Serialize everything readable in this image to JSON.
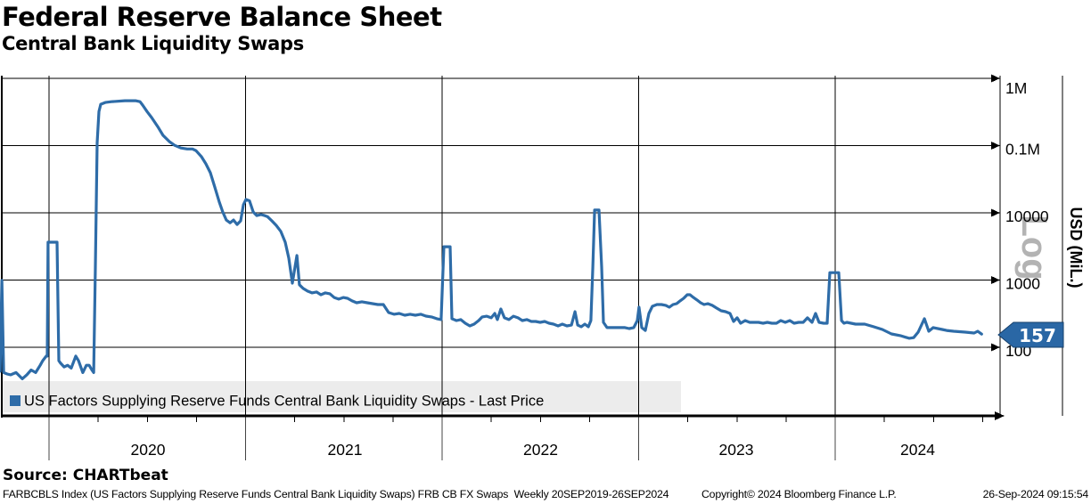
{
  "header": {
    "title": "Federal Reserve Balance Sheet",
    "subtitle": "Central Bank Liquidity Swaps"
  },
  "legend": {
    "label": "US Factors Supplying Reserve Funds Central Bank Liquidity Swaps - Last Price"
  },
  "badge": {
    "value": "157"
  },
  "footer": {
    "source": "Source: CHARTbeat",
    "description": "FARBCBLS Index (US Factors Supplying Reserve Funds Central Bank Liquidity Swaps) FRB CB FX Swaps  Weekly 20SEP2019-26SEP2024",
    "copyright": "Copyright© 2024 Bloomberg Finance L.P.",
    "timestamp": "26-Sep-2024 09:15:54"
  },
  "colors": {
    "line": "#2e6ca8",
    "badge_fill": "#2a67a5",
    "badge_border": "#17406b",
    "legend_bg": "#ececec",
    "log_label": "#b3b3b3",
    "grid": "#000000"
  },
  "chart_data": {
    "type": "line",
    "title": "Federal Reserve Balance Sheet",
    "subtitle": "Central Bank Liquidity Swaps",
    "ylabel": "USD (MiL.)",
    "scale_label": "Log",
    "y_scale": "log",
    "grid": true,
    "legend_position": "bottom-left",
    "ylim": [
      30,
      1200000
    ],
    "xlim": [
      2019.72,
      2024.78
    ],
    "y_ticks": [
      "1M",
      "0.1M",
      "10000",
      "1000",
      "100"
    ],
    "y_tick_values": [
      1000000,
      100000,
      10000,
      1000,
      100
    ],
    "x_ticks": [
      "2020",
      "2021",
      "2022",
      "2023",
      "2024"
    ],
    "x_range_label": "Weekly 20SEP2019-26SEP2024",
    "last_price": "157",
    "series": [
      {
        "name": "US Factors Supplying Reserve Funds Central Bank Liquidity Swaps - Last Price",
        "color": "#2e6ca8",
        "points": [
          [
            2019.751,
            44
          ],
          [
            2019.76,
            990
          ],
          [
            2019.769,
            42
          ],
          [
            2019.787,
            40
          ],
          [
            2019.805,
            39
          ],
          [
            2019.832,
            42
          ],
          [
            2019.864,
            34
          ],
          [
            2019.887,
            39
          ],
          [
            2019.909,
            46
          ],
          [
            2019.932,
            42
          ],
          [
            2019.955,
            54
          ],
          [
            2019.968,
            63
          ],
          [
            2019.986,
            74
          ],
          [
            2019.991,
            74
          ],
          [
            2019.995,
            3660
          ],
          [
            2020.041,
            3660
          ],
          [
            2020.05,
            63
          ],
          [
            2020.059,
            58
          ],
          [
            2020.077,
            51
          ],
          [
            2020.095,
            54
          ],
          [
            2020.113,
            49
          ],
          [
            2020.136,
            74
          ],
          [
            2020.15,
            63
          ],
          [
            2020.172,
            42
          ],
          [
            2020.19,
            54
          ],
          [
            2020.204,
            54
          ],
          [
            2020.218,
            46
          ],
          [
            2020.227,
            42
          ],
          [
            2020.236,
            1560
          ],
          [
            2020.245,
            110000
          ],
          [
            2020.254,
            321000
          ],
          [
            2020.263,
            412000
          ],
          [
            2020.286,
            437000
          ],
          [
            2020.317,
            450000
          ],
          [
            2020.386,
            465000
          ],
          [
            2020.44,
            465000
          ],
          [
            2020.463,
            450000
          ],
          [
            2020.476,
            400000
          ],
          [
            2020.499,
            321000
          ],
          [
            2020.522,
            261000
          ],
          [
            2020.553,
            192000
          ],
          [
            2020.58,
            142000
          ],
          [
            2020.612,
            115000
          ],
          [
            2020.639,
            101000
          ],
          [
            2020.671,
            92000
          ],
          [
            2020.703,
            89000
          ],
          [
            2020.73,
            89000
          ],
          [
            2020.748,
            84000
          ],
          [
            2020.776,
            68000
          ],
          [
            2020.798,
            53500
          ],
          [
            2020.821,
            39500
          ],
          [
            2020.843,
            24300
          ],
          [
            2020.866,
            14500
          ],
          [
            2020.884,
            10300
          ],
          [
            2020.902,
            7800
          ],
          [
            2020.921,
            7100
          ],
          [
            2020.939,
            7800
          ],
          [
            2020.957,
            6700
          ],
          [
            2020.975,
            7600
          ],
          [
            2020.989,
            13200
          ],
          [
            2021.002,
            15800
          ],
          [
            2021.02,
            15100
          ],
          [
            2021.039,
            10300
          ],
          [
            2021.057,
            9100
          ],
          [
            2021.079,
            9400
          ],
          [
            2021.097,
            9100
          ],
          [
            2021.111,
            8800
          ],
          [
            2021.134,
            7600
          ],
          [
            2021.156,
            6500
          ],
          [
            2021.179,
            5300
          ],
          [
            2021.202,
            3660
          ],
          [
            2021.22,
            2120
          ],
          [
            2021.238,
            900
          ],
          [
            2021.261,
            2320
          ],
          [
            2021.274,
            850
          ],
          [
            2021.293,
            750
          ],
          [
            2021.315,
            685
          ],
          [
            2021.338,
            645
          ],
          [
            2021.361,
            665
          ],
          [
            2021.383,
            605
          ],
          [
            2021.406,
            645
          ],
          [
            2021.429,
            625
          ],
          [
            2021.451,
            550
          ],
          [
            2021.474,
            520
          ],
          [
            2021.497,
            550
          ],
          [
            2021.519,
            535
          ],
          [
            2021.542,
            490
          ],
          [
            2021.565,
            460
          ],
          [
            2021.592,
            475
          ],
          [
            2021.619,
            460
          ],
          [
            2021.646,
            445
          ],
          [
            2021.673,
            432
          ],
          [
            2021.701,
            432
          ],
          [
            2021.728,
            329
          ],
          [
            2021.755,
            310
          ],
          [
            2021.782,
            319
          ],
          [
            2021.81,
            300
          ],
          [
            2021.837,
            310
          ],
          [
            2021.864,
            300
          ],
          [
            2021.891,
            310
          ],
          [
            2021.918,
            291
          ],
          [
            2021.946,
            283
          ],
          [
            2021.973,
            266
          ],
          [
            2021.995,
            258
          ],
          [
            2022.009,
            3130
          ],
          [
            2022.041,
            3130
          ],
          [
            2022.05,
            266
          ],
          [
            2022.073,
            250
          ],
          [
            2022.095,
            258
          ],
          [
            2022.118,
            228
          ],
          [
            2022.141,
            208
          ],
          [
            2022.163,
            221
          ],
          [
            2022.186,
            250
          ],
          [
            2022.204,
            283
          ],
          [
            2022.227,
            290
          ],
          [
            2022.25,
            274
          ],
          [
            2022.268,
            319
          ],
          [
            2022.281,
            258
          ],
          [
            2022.299,
            371
          ],
          [
            2022.317,
            274
          ],
          [
            2022.34,
            258
          ],
          [
            2022.363,
            290
          ],
          [
            2022.386,
            274
          ],
          [
            2022.408,
            250
          ],
          [
            2022.431,
            258
          ],
          [
            2022.454,
            242
          ],
          [
            2022.476,
            242
          ],
          [
            2022.499,
            235
          ],
          [
            2022.522,
            242
          ],
          [
            2022.544,
            228
          ],
          [
            2022.567,
            221
          ],
          [
            2022.59,
            208
          ],
          [
            2022.612,
            221
          ],
          [
            2022.635,
            208
          ],
          [
            2022.658,
            214
          ],
          [
            2022.676,
            339
          ],
          [
            2022.69,
            214
          ],
          [
            2022.708,
            202
          ],
          [
            2022.726,
            221
          ],
          [
            2022.744,
            202
          ],
          [
            2022.757,
            250
          ],
          [
            2022.767,
            1560
          ],
          [
            2022.776,
            11000
          ],
          [
            2022.798,
            11000
          ],
          [
            2022.812,
            1560
          ],
          [
            2022.821,
            235
          ],
          [
            2022.839,
            196
          ],
          [
            2022.862,
            196
          ],
          [
            2022.884,
            196
          ],
          [
            2022.907,
            196
          ],
          [
            2022.93,
            196
          ],
          [
            2022.952,
            190
          ],
          [
            2022.975,
            196
          ],
          [
            2022.993,
            250
          ],
          [
            2023.002,
            395
          ],
          [
            2023.016,
            196
          ],
          [
            2023.034,
            178
          ],
          [
            2023.052,
            319
          ],
          [
            2023.07,
            407
          ],
          [
            2023.093,
            432
          ],
          [
            2023.116,
            432
          ],
          [
            2023.138,
            420
          ],
          [
            2023.156,
            395
          ],
          [
            2023.175,
            432
          ],
          [
            2023.193,
            445
          ],
          [
            2023.211,
            490
          ],
          [
            2023.229,
            535
          ],
          [
            2023.247,
            605
          ],
          [
            2023.261,
            605
          ],
          [
            2023.279,
            550
          ],
          [
            2023.297,
            505
          ],
          [
            2023.315,
            460
          ],
          [
            2023.333,
            432
          ],
          [
            2023.352,
            445
          ],
          [
            2023.374,
            420
          ],
          [
            2023.397,
            383
          ],
          [
            2023.42,
            349
          ],
          [
            2023.442,
            339
          ],
          [
            2023.465,
            319
          ],
          [
            2023.483,
            242
          ],
          [
            2023.501,
            274
          ],
          [
            2023.519,
            228
          ],
          [
            2023.542,
            250
          ],
          [
            2023.565,
            235
          ],
          [
            2023.587,
            235
          ],
          [
            2023.61,
            235
          ],
          [
            2023.633,
            228
          ],
          [
            2023.655,
            235
          ],
          [
            2023.678,
            228
          ],
          [
            2023.701,
            228
          ],
          [
            2023.723,
            250
          ],
          [
            2023.746,
            235
          ],
          [
            2023.769,
            250
          ],
          [
            2023.791,
            228
          ],
          [
            2023.814,
            235
          ],
          [
            2023.837,
            235
          ],
          [
            2023.859,
            274
          ],
          [
            2023.882,
            235
          ],
          [
            2023.9,
            319
          ],
          [
            2023.918,
            235
          ],
          [
            2023.941,
            228
          ],
          [
            2023.959,
            228
          ],
          [
            2023.973,
            1290
          ],
          [
            2024.018,
            1290
          ],
          [
            2024.032,
            250
          ],
          [
            2024.045,
            228
          ],
          [
            2024.059,
            235
          ],
          [
            2024.104,
            221
          ],
          [
            2024.15,
            221
          ],
          [
            2024.195,
            202
          ],
          [
            2024.24,
            184
          ],
          [
            2024.286,
            158
          ],
          [
            2024.331,
            149
          ],
          [
            2024.376,
            136
          ],
          [
            2024.399,
            139
          ],
          [
            2024.422,
            168
          ],
          [
            2024.454,
            266
          ],
          [
            2024.476,
            173
          ],
          [
            2024.499,
            196
          ],
          [
            2024.544,
            184
          ],
          [
            2024.567,
            178
          ],
          [
            2024.603,
            173
          ],
          [
            2024.662,
            168
          ],
          [
            2024.707,
            163
          ],
          [
            2024.725,
            173
          ],
          [
            2024.745,
            157
          ]
        ]
      }
    ]
  }
}
